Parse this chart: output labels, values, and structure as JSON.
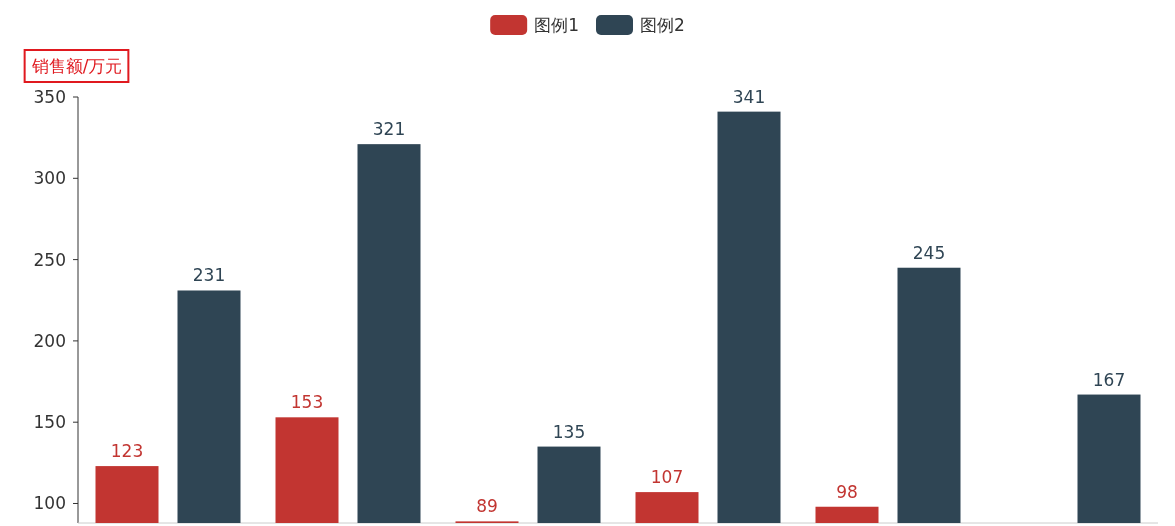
{
  "chart_data": {
    "type": "bar",
    "ylabel": "销售额/万元",
    "categories": [
      null,
      null,
      null,
      null,
      null,
      null
    ],
    "series": [
      {
        "name": "图例1",
        "color": "#c23531",
        "values": [
          123,
          153,
          89,
          107,
          98,
          null
        ]
      },
      {
        "name": "图例2",
        "color": "#2f4554",
        "values": [
          231,
          321,
          135,
          341,
          245,
          167
        ]
      }
    ],
    "ylim": [
      88,
      350
    ],
    "yticks": [
      100,
      150,
      200,
      250,
      300,
      350
    ],
    "data_labels": true,
    "legend": "top",
    "grid": false
  }
}
